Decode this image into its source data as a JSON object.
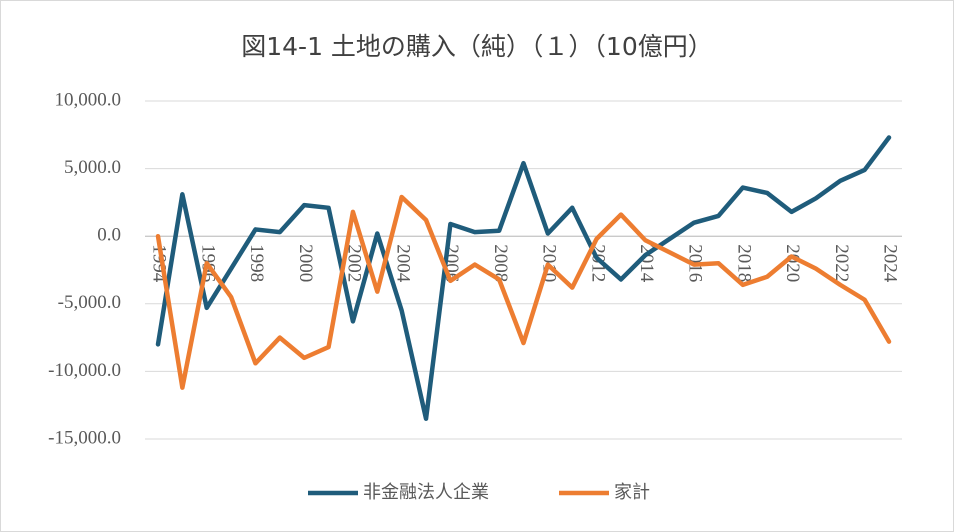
{
  "chart_data": {
    "type": "line",
    "title": "図14-1 土地の購入（純）（１）（10億円）",
    "categories": [
      "1994",
      null,
      "1996",
      null,
      "1998",
      null,
      "2000",
      null,
      "2002",
      null,
      "2004",
      null,
      "2006",
      null,
      "2008",
      null,
      "2010",
      null,
      "2012",
      null,
      "2014",
      null,
      "2016",
      null,
      "2018",
      null,
      "2020",
      null,
      "2022",
      null,
      "2024"
    ],
    "series": [
      {
        "name": "非金融法人企業",
        "color": "#1f5c7b",
        "values": [
          -8000,
          3100,
          -5300,
          -2400,
          500,
          300,
          2300,
          2100,
          -6300,
          200,
          -5500,
          -13500,
          900,
          300,
          400,
          5400,
          200,
          2100,
          -1600,
          -3200,
          -1400,
          -200,
          1000,
          1500,
          3600,
          3200,
          1800,
          2800,
          4100,
          4900,
          7300
        ]
      },
      {
        "name": "家計",
        "color": "#ed7d31",
        "values": [
          0,
          -11200,
          -2000,
          -4500,
          -9400,
          -7500,
          -9000,
          -8200,
          1800,
          -4100,
          2900,
          1200,
          -3300,
          -2100,
          -3200,
          -7900,
          -2100,
          -3800,
          -200,
          1600,
          -300,
          -1200,
          -2100,
          -2000,
          -3600,
          -3000,
          -1500,
          -2400,
          -3600,
          -4700,
          -7800
        ]
      }
    ],
    "ylim": [
      -15000,
      10000
    ],
    "yticks": [
      {
        "value": -15000,
        "label": "-15,000.0"
      },
      {
        "value": -10000,
        "label": "-10,000.0"
      },
      {
        "value": -5000,
        "label": "-5,000.0"
      },
      {
        "value": 0,
        "label": "0.0"
      },
      {
        "value": 5000,
        "label": "5,000.0"
      },
      {
        "value": 10000,
        "label": "10,000.0"
      }
    ],
    "grid": true,
    "legend": "bottom"
  }
}
